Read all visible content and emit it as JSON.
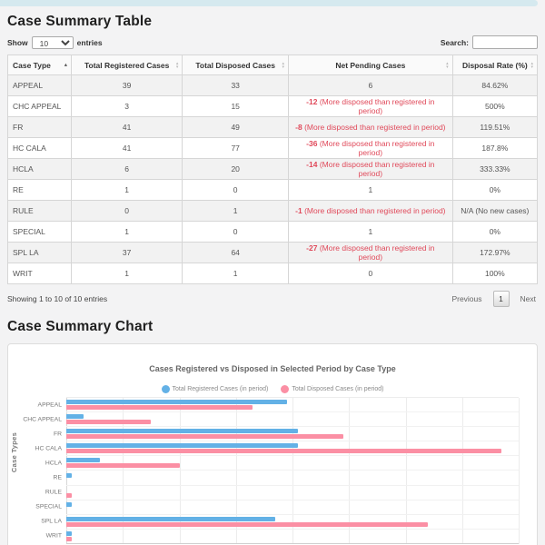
{
  "topbar": {
    "color": "#d5e9ef"
  },
  "table_section": {
    "title": "Case Summary Table",
    "show_label": "Show",
    "page_length": "10",
    "entries_label": "entries",
    "search_label": "Search:",
    "search_value": "",
    "columns": [
      "Case Type",
      "Total Registered Cases",
      "Total Disposed Cases",
      "Net Pending Cases",
      "Disposal Rate (%)"
    ],
    "rows": [
      {
        "case_type": "APPEAL",
        "registered": "39",
        "disposed": "33",
        "pending": "6",
        "pending_note": "",
        "rate": "84.62%"
      },
      {
        "case_type": "CHC APPEAL",
        "registered": "3",
        "disposed": "15",
        "pending": "-12",
        "pending_note": "(More disposed than registered in period)",
        "rate": "500%"
      },
      {
        "case_type": "FR",
        "registered": "41",
        "disposed": "49",
        "pending": "-8",
        "pending_note": "(More disposed than registered in period)",
        "rate": "119.51%"
      },
      {
        "case_type": "HC CALA",
        "registered": "41",
        "disposed": "77",
        "pending": "-36",
        "pending_note": "(More disposed than registered in period)",
        "rate": "187.8%"
      },
      {
        "case_type": "HCLA",
        "registered": "6",
        "disposed": "20",
        "pending": "-14",
        "pending_note": "(More disposed than registered in period)",
        "rate": "333.33%"
      },
      {
        "case_type": "RE",
        "registered": "1",
        "disposed": "0",
        "pending": "1",
        "pending_note": "",
        "rate": "0%"
      },
      {
        "case_type": "RULE",
        "registered": "0",
        "disposed": "1",
        "pending": "-1",
        "pending_note": "(More disposed than registered in period)",
        "rate": "N/A (No new cases)"
      },
      {
        "case_type": "SPECIAL",
        "registered": "1",
        "disposed": "0",
        "pending": "1",
        "pending_note": "",
        "rate": "0%"
      },
      {
        "case_type": "SPL LA",
        "registered": "37",
        "disposed": "64",
        "pending": "-27",
        "pending_note": "(More disposed than registered in period)",
        "rate": "172.97%"
      },
      {
        "case_type": "WRIT",
        "registered": "1",
        "disposed": "1",
        "pending": "0",
        "pending_note": "",
        "rate": "100%"
      }
    ],
    "footer_info": "Showing 1 to 10 of 10 entries",
    "pagination": {
      "previous": "Previous",
      "current_page": "1",
      "next": "Next"
    },
    "negative_color": "#e0495a"
  },
  "chart_section": {
    "title": "Case Summary Chart"
  },
  "chart_data": {
    "type": "bar",
    "orientation": "horizontal",
    "title": "Cases Registered vs Disposed in Selected Period by Case Type",
    "categories": [
      "APPEAL",
      "CHC APPEAL",
      "FR",
      "HC CALA",
      "HCLA",
      "RE",
      "RULE",
      "SPECIAL",
      "SPL LA",
      "WRIT"
    ],
    "series": [
      {
        "name": "Total Registered Cases (in period)",
        "color": "#63b1e6",
        "values": [
          39,
          3,
          41,
          41,
          6,
          1,
          0,
          1,
          37,
          1
        ]
      },
      {
        "name": "Total Disposed Cases (in period)",
        "color": "#fb8fa4",
        "values": [
          33,
          15,
          49,
          77,
          20,
          0,
          1,
          0,
          64,
          1
        ]
      }
    ],
    "xlabel": "",
    "ylabel": "Case Types",
    "xlim": [
      0,
      80
    ],
    "xticks": [
      0,
      10,
      20,
      30,
      40,
      50,
      60,
      70,
      80
    ],
    "grid": true,
    "legend_position": "top"
  }
}
